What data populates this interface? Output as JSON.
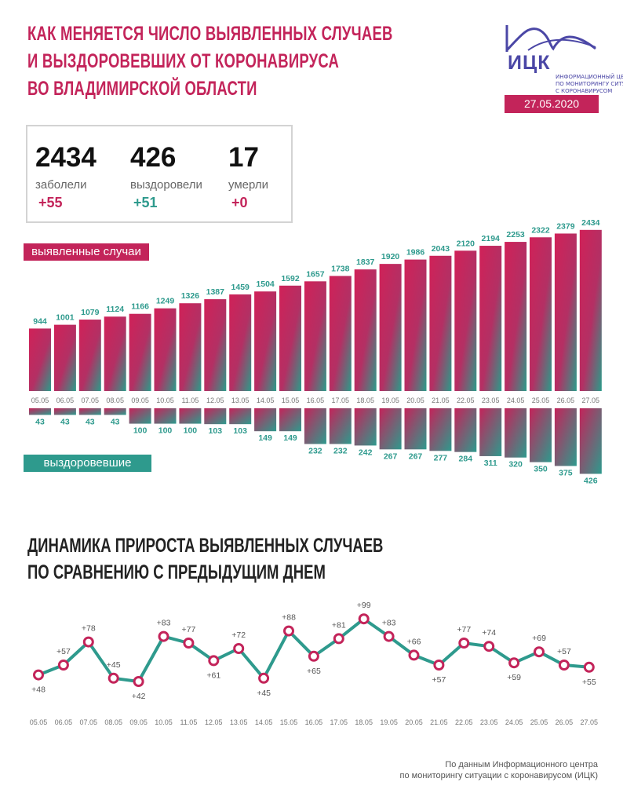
{
  "header": {
    "title_lines": [
      "КАК МЕНЯЕТСЯ ЧИСЛО ВЫЯВЛЕННЫХ СЛУЧАЕВ",
      "И ВЫЗДОРОВЕВШИХ ОТ КОРОНАВИРУСА",
      "ВО ВЛАДИМИРСКОЙ ОБЛАСТИ"
    ],
    "logo_name": "ИЦК",
    "logo_sub_lines": [
      "ИНФОРМАЦИОННЫЙ ЦЕНТР",
      "ПО МОНИТОРИНГУ СИТУАЦИИ",
      "С КОРОНАВИРУСОМ"
    ],
    "date": "27.05.2020"
  },
  "summary": {
    "cases": {
      "value": "2434",
      "label": "заболели",
      "delta": "+55"
    },
    "recovered": {
      "value": "426",
      "label": "выздоровели",
      "delta": "+51"
    },
    "deaths": {
      "value": "17",
      "label": "умерли",
      "delta": "+0"
    }
  },
  "labels": {
    "cases_pill": "выявленные случаи",
    "recovered_pill": "выздоровевшие"
  },
  "line_title_lines": [
    "ДИНАМИКА ПРИРОСТА ВЫЯВЛЕННЫХ СЛУЧАЕВ",
    "ПО СРАВНЕНИЮ С ПРЕДЫДУЩИМ ДНЕМ"
  ],
  "source_lines": [
    "По данным Информационного центра",
    "по мониторингу ситуации с коронавирусом (ИЦК)"
  ],
  "colors": {
    "accent": "#c3245a",
    "teal": "#2e9a8d",
    "logo": "#4b47a6"
  },
  "chart_data": [
    {
      "type": "bar",
      "categories": [
        "05.05",
        "06.05",
        "07.05",
        "08.05",
        "09.05",
        "10.05",
        "11.05",
        "12.05",
        "13.05",
        "14.05",
        "15.05",
        "16.05",
        "17.05",
        "18.05",
        "19.05",
        "20.05",
        "21.05",
        "22.05",
        "23.05",
        "24.05",
        "25.05",
        "26.05",
        "27.05"
      ],
      "series": [
        {
          "name": "выявленные случаи",
          "values": [
            944,
            1001,
            1079,
            1124,
            1166,
            1249,
            1326,
            1387,
            1459,
            1504,
            1592,
            1657,
            1738,
            1837,
            1920,
            1986,
            2043,
            2120,
            2194,
            2253,
            2322,
            2379,
            2434
          ]
        },
        {
          "name": "выздоровевшие",
          "values": [
            43,
            43,
            43,
            43,
            100,
            100,
            100,
            103,
            103,
            149,
            149,
            232,
            232,
            242,
            267,
            267,
            277,
            284,
            311,
            320,
            350,
            375,
            426
          ]
        }
      ],
      "grid": false
    },
    {
      "type": "line",
      "x": [
        "05.05",
        "06.05",
        "07.05",
        "08.05",
        "09.05",
        "10.05",
        "11.05",
        "12.05",
        "13.05",
        "14.05",
        "15.05",
        "16.05",
        "17.05",
        "18.05",
        "19.05",
        "20.05",
        "21.05",
        "22.05",
        "23.05",
        "24.05",
        "25.05",
        "26.05",
        "27.05"
      ],
      "values": [
        48,
        57,
        78,
        45,
        42,
        83,
        77,
        61,
        72,
        45,
        88,
        65,
        81,
        99,
        83,
        66,
        57,
        77,
        74,
        59,
        69,
        57,
        55
      ],
      "labels": [
        "+48",
        "+57",
        "+78",
        "+45",
        "+42",
        "+83",
        "+77",
        "+61",
        "+72",
        "+45",
        "+88",
        "+65",
        "+81",
        "+99",
        "+83",
        "+66",
        "+57",
        "+77",
        "+74",
        "+59",
        "+69",
        "+57",
        "+55"
      ],
      "grid": false
    }
  ]
}
